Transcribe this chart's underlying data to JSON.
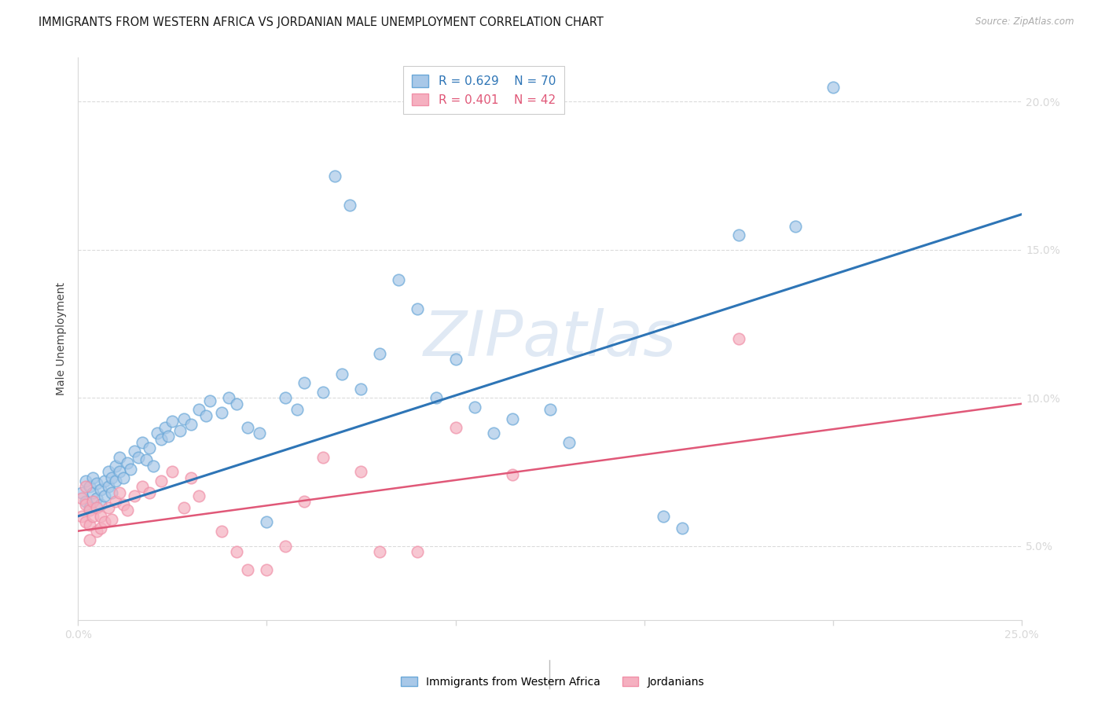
{
  "title": "IMMIGRANTS FROM WESTERN AFRICA VS JORDANIAN MALE UNEMPLOYMENT CORRELATION CHART",
  "source": "Source: ZipAtlas.com",
  "ylabel": "Male Unemployment",
  "x_min": 0.0,
  "x_max": 0.25,
  "y_min": 0.025,
  "y_max": 0.215,
  "y_ticks": [
    0.05,
    0.1,
    0.15,
    0.2
  ],
  "y_tick_labels": [
    "5.0%",
    "10.0%",
    "15.0%",
    "20.0%"
  ],
  "x_ticks": [
    0.0,
    0.05,
    0.1,
    0.15,
    0.2,
    0.25
  ],
  "x_tick_labels": [
    "0.0%",
    "",
    "",
    "",
    "",
    "25.0%"
  ],
  "watermark": "ZIPatlas",
  "blue_color": "#a8c8e8",
  "pink_color": "#f5b0c0",
  "blue_edge_color": "#6aa8d8",
  "pink_edge_color": "#f090a8",
  "blue_line_color": "#2E75B6",
  "pink_line_color": "#e05878",
  "blue_R": "0.629",
  "blue_N": "70",
  "pink_R": "0.401",
  "pink_N": "42",
  "blue_label": "Immigrants from Western Africa",
  "pink_label": "Jordanians",
  "blue_line_start_x": 0.0,
  "blue_line_start_y": 0.06,
  "blue_line_end_x": 0.25,
  "blue_line_end_y": 0.162,
  "pink_line_start_x": 0.0,
  "pink_line_start_y": 0.055,
  "pink_line_end_x": 0.25,
  "pink_line_end_y": 0.098,
  "blue_scatter": [
    [
      0.001,
      0.068
    ],
    [
      0.002,
      0.065
    ],
    [
      0.002,
      0.072
    ],
    [
      0.003,
      0.07
    ],
    [
      0.003,
      0.063
    ],
    [
      0.004,
      0.068
    ],
    [
      0.004,
      0.073
    ],
    [
      0.005,
      0.066
    ],
    [
      0.005,
      0.071
    ],
    [
      0.006,
      0.069
    ],
    [
      0.006,
      0.064
    ],
    [
      0.007,
      0.072
    ],
    [
      0.007,
      0.067
    ],
    [
      0.008,
      0.075
    ],
    [
      0.008,
      0.07
    ],
    [
      0.009,
      0.068
    ],
    [
      0.009,
      0.073
    ],
    [
      0.01,
      0.077
    ],
    [
      0.01,
      0.072
    ],
    [
      0.011,
      0.08
    ],
    [
      0.011,
      0.075
    ],
    [
      0.012,
      0.073
    ],
    [
      0.013,
      0.078
    ],
    [
      0.014,
      0.076
    ],
    [
      0.015,
      0.082
    ],
    [
      0.016,
      0.08
    ],
    [
      0.017,
      0.085
    ],
    [
      0.018,
      0.079
    ],
    [
      0.019,
      0.083
    ],
    [
      0.02,
      0.077
    ],
    [
      0.021,
      0.088
    ],
    [
      0.022,
      0.086
    ],
    [
      0.023,
      0.09
    ],
    [
      0.024,
      0.087
    ],
    [
      0.025,
      0.092
    ],
    [
      0.027,
      0.089
    ],
    [
      0.028,
      0.093
    ],
    [
      0.03,
      0.091
    ],
    [
      0.032,
      0.096
    ],
    [
      0.034,
      0.094
    ],
    [
      0.035,
      0.099
    ],
    [
      0.038,
      0.095
    ],
    [
      0.04,
      0.1
    ],
    [
      0.042,
      0.098
    ],
    [
      0.045,
      0.09
    ],
    [
      0.048,
      0.088
    ],
    [
      0.05,
      0.058
    ],
    [
      0.055,
      0.1
    ],
    [
      0.058,
      0.096
    ],
    [
      0.06,
      0.105
    ],
    [
      0.065,
      0.102
    ],
    [
      0.068,
      0.175
    ],
    [
      0.07,
      0.108
    ],
    [
      0.072,
      0.165
    ],
    [
      0.075,
      0.103
    ],
    [
      0.08,
      0.115
    ],
    [
      0.085,
      0.14
    ],
    [
      0.09,
      0.13
    ],
    [
      0.095,
      0.1
    ],
    [
      0.1,
      0.113
    ],
    [
      0.105,
      0.097
    ],
    [
      0.11,
      0.088
    ],
    [
      0.115,
      0.093
    ],
    [
      0.125,
      0.096
    ],
    [
      0.13,
      0.085
    ],
    [
      0.155,
      0.06
    ],
    [
      0.16,
      0.056
    ],
    [
      0.175,
      0.155
    ],
    [
      0.19,
      0.158
    ],
    [
      0.2,
      0.205
    ]
  ],
  "pink_scatter": [
    [
      0.001,
      0.066
    ],
    [
      0.001,
      0.06
    ],
    [
      0.002,
      0.064
    ],
    [
      0.002,
      0.058
    ],
    [
      0.002,
      0.07
    ],
    [
      0.003,
      0.062
    ],
    [
      0.003,
      0.057
    ],
    [
      0.004,
      0.065
    ],
    [
      0.004,
      0.06
    ],
    [
      0.005,
      0.063
    ],
    [
      0.005,
      0.055
    ],
    [
      0.006,
      0.06
    ],
    [
      0.006,
      0.056
    ],
    [
      0.007,
      0.058
    ],
    [
      0.008,
      0.063
    ],
    [
      0.009,
      0.059
    ],
    [
      0.01,
      0.065
    ],
    [
      0.011,
      0.068
    ],
    [
      0.012,
      0.064
    ],
    [
      0.013,
      0.062
    ],
    [
      0.015,
      0.067
    ],
    [
      0.017,
      0.07
    ],
    [
      0.019,
      0.068
    ],
    [
      0.022,
      0.072
    ],
    [
      0.025,
      0.075
    ],
    [
      0.028,
      0.063
    ],
    [
      0.03,
      0.073
    ],
    [
      0.032,
      0.067
    ],
    [
      0.038,
      0.055
    ],
    [
      0.042,
      0.048
    ],
    [
      0.045,
      0.042
    ],
    [
      0.05,
      0.042
    ],
    [
      0.055,
      0.05
    ],
    [
      0.06,
      0.065
    ],
    [
      0.065,
      0.08
    ],
    [
      0.075,
      0.075
    ],
    [
      0.08,
      0.048
    ],
    [
      0.09,
      0.048
    ],
    [
      0.1,
      0.09
    ],
    [
      0.115,
      0.074
    ],
    [
      0.175,
      0.12
    ],
    [
      0.003,
      0.052
    ]
  ],
  "grid_color": "#d8d8d8",
  "background_color": "#ffffff",
  "title_fontsize": 10.5,
  "tick_label_color": "#4472c4"
}
